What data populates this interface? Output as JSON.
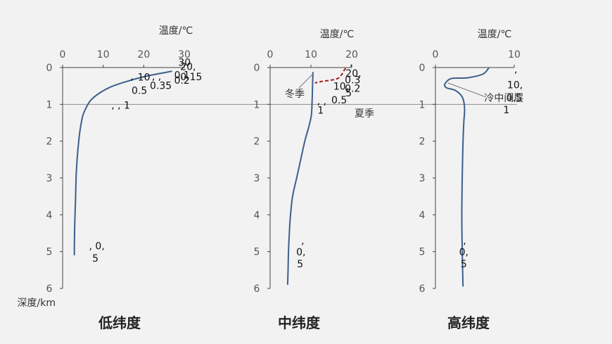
{
  "chart_data": [
    {
      "type": "line",
      "title": "低纬度",
      "xlabel": "温度/℃",
      "ylabel": "深度/km",
      "xlim": [
        0,
        30
      ],
      "ylim": [
        0,
        6
      ],
      "x_ticks": [
        "0",
        "10",
        "20",
        "30"
      ],
      "y_ticks": [
        "0",
        "1",
        "2",
        "3",
        "4",
        "5",
        "6"
      ],
      "series": [
        {
          "color": "#3c5f8c",
          "x": [
            27,
            24,
            20,
            16,
            12,
            9,
            7,
            6,
            5,
            4.3,
            3.8,
            3.4,
            3.2,
            3.0,
            2.9,
            2.9
          ],
          "y": [
            0.1,
            0.16,
            0.25,
            0.37,
            0.52,
            0.7,
            0.88,
            1.05,
            1.3,
            1.7,
            2.2,
            2.8,
            3.5,
            4.2,
            4.8,
            5.1
          ]
        }
      ],
      "annotations": [
        {
          "text": "30",
          "x": 28.5,
          "y": -0.05
        },
        {
          "text": "20,",
          "x": 29,
          "y": 0.07
        },
        {
          "text": "0.1",
          "x": 27.5,
          "y": 0.3
        },
        {
          "text": "0.15",
          "x": 29,
          "y": 0.34
        },
        {
          "text": "0.2",
          "x": 27.5,
          "y": 0.44
        },
        {
          "text": "10",
          "x": 18.5,
          "y": 0.35
        },
        {
          "text": ",",
          "x": 16.7,
          "y": 0.33
        },
        {
          "text": ", ,",
          "x": 22,
          "y": 0.33
        },
        {
          "text": "0.35",
          "x": 21.5,
          "y": 0.58
        },
        {
          "text": "0.5",
          "x": 17,
          "y": 0.72
        },
        {
          "text": ", , 1",
          "x": 12,
          "y": 1.12
        },
        {
          "text": ", 0,",
          "x": 6.5,
          "y": 4.94
        },
        {
          "text": "5",
          "x": 7.3,
          "y": 5.27
        }
      ]
    },
    {
      "type": "line",
      "title": "中纬度",
      "xlabel": "温度/℃",
      "xlim": [
        0,
        20
      ],
      "ylim": [
        0,
        6
      ],
      "x_ticks": [
        "0",
        "10",
        "20"
      ],
      "y_ticks": [
        "0",
        "1",
        "2",
        "3",
        "4",
        "5",
        "6"
      ],
      "series": [
        {
          "name": "冬季",
          "color": "#3c5f8c",
          "x": [
            10.5,
            10.4,
            10.3,
            10.1,
            9.5,
            8.5,
            7.5,
            6.5,
            5.5,
            5.0,
            4.7,
            4.5,
            4.4,
            4.3
          ],
          "y": [
            0.12,
            0.5,
            0.9,
            1.3,
            1.6,
            2.0,
            2.5,
            3.0,
            3.5,
            4.0,
            4.5,
            5.0,
            5.5,
            5.9
          ]
        },
        {
          "name": "夏季",
          "color": "#a61c1c",
          "x": [
            18.5,
            18.0,
            17.5,
            16.5,
            14.5,
            12.5,
            11.0
          ],
          "y": [
            0.02,
            0.1,
            0.2,
            0.3,
            0.35,
            0.38,
            0.42
          ]
        }
      ],
      "annotations": [
        {
          "text": ",",
          "x": 19.5,
          "y": -0.05
        },
        {
          "text": "20,",
          "x": 18.5,
          "y": 0.25
        },
        {
          "text": "0.3",
          "x": 18.3,
          "y": 0.43
        },
        {
          "text": "10,",
          "x": 15.5,
          "y": 0.6
        },
        {
          "text": "0.2",
          "x": 18.3,
          "y": 0.66
        },
        {
          "text": "5",
          "x": 18.5,
          "y": 0.78
        },
        {
          "text": "0.5",
          "x": 15,
          "y": 0.97
        },
        {
          "text": ", ,",
          "x": 11.5,
          "y": 1.0
        },
        {
          "text": "1",
          "x": 11.6,
          "y": 1.25
        },
        {
          "text": ",",
          "x": 7.6,
          "y": 4.8
        },
        {
          "text": "0,",
          "x": 6.4,
          "y": 5.1
        },
        {
          "text": "5",
          "x": 6.6,
          "y": 5.43
        }
      ]
    },
    {
      "type": "line",
      "title": "高纬度",
      "xlabel": "温度/℃",
      "xlim": [
        0,
        10
      ],
      "ylim": [
        0,
        6
      ],
      "x_ticks": [
        "0",
        "10"
      ],
      "y_ticks": [
        "0",
        "1",
        "2",
        "3",
        "4",
        "5",
        "6"
      ],
      "series": [
        {
          "color": "#3c5f8c",
          "x": [
            6.8,
            6.0,
            4.0,
            2.0,
            1.2,
            1.4,
            2.5,
            3.4,
            3.7,
            3.6,
            3.5,
            3.4,
            3.35,
            3.4,
            3.5
          ],
          "y": [
            0.0,
            0.18,
            0.28,
            0.3,
            0.45,
            0.55,
            0.62,
            0.8,
            1.1,
            1.5,
            2.0,
            3.0,
            4.0,
            5.0,
            5.95
          ]
        }
      ],
      "annotations": [
        {
          "text": ",",
          "x": 10.0,
          "y": 0.14
        },
        {
          "text": "10,",
          "x": 9.1,
          "y": 0.56
        },
        {
          "text": "0.5",
          "x": 9.0,
          "y": 0.92
        },
        {
          "text": "1",
          "x": 8.6,
          "y": 1.24
        },
        {
          "text": "冷中间层",
          "x": 6.2,
          "y": 0.92
        },
        {
          "text": ",",
          "x": 3.5,
          "y": 4.8
        },
        {
          "text": "0,",
          "x": 3.0,
          "y": 5.1
        },
        {
          "text": "5",
          "x": 3.2,
          "y": 5.43
        }
      ]
    }
  ]
}
